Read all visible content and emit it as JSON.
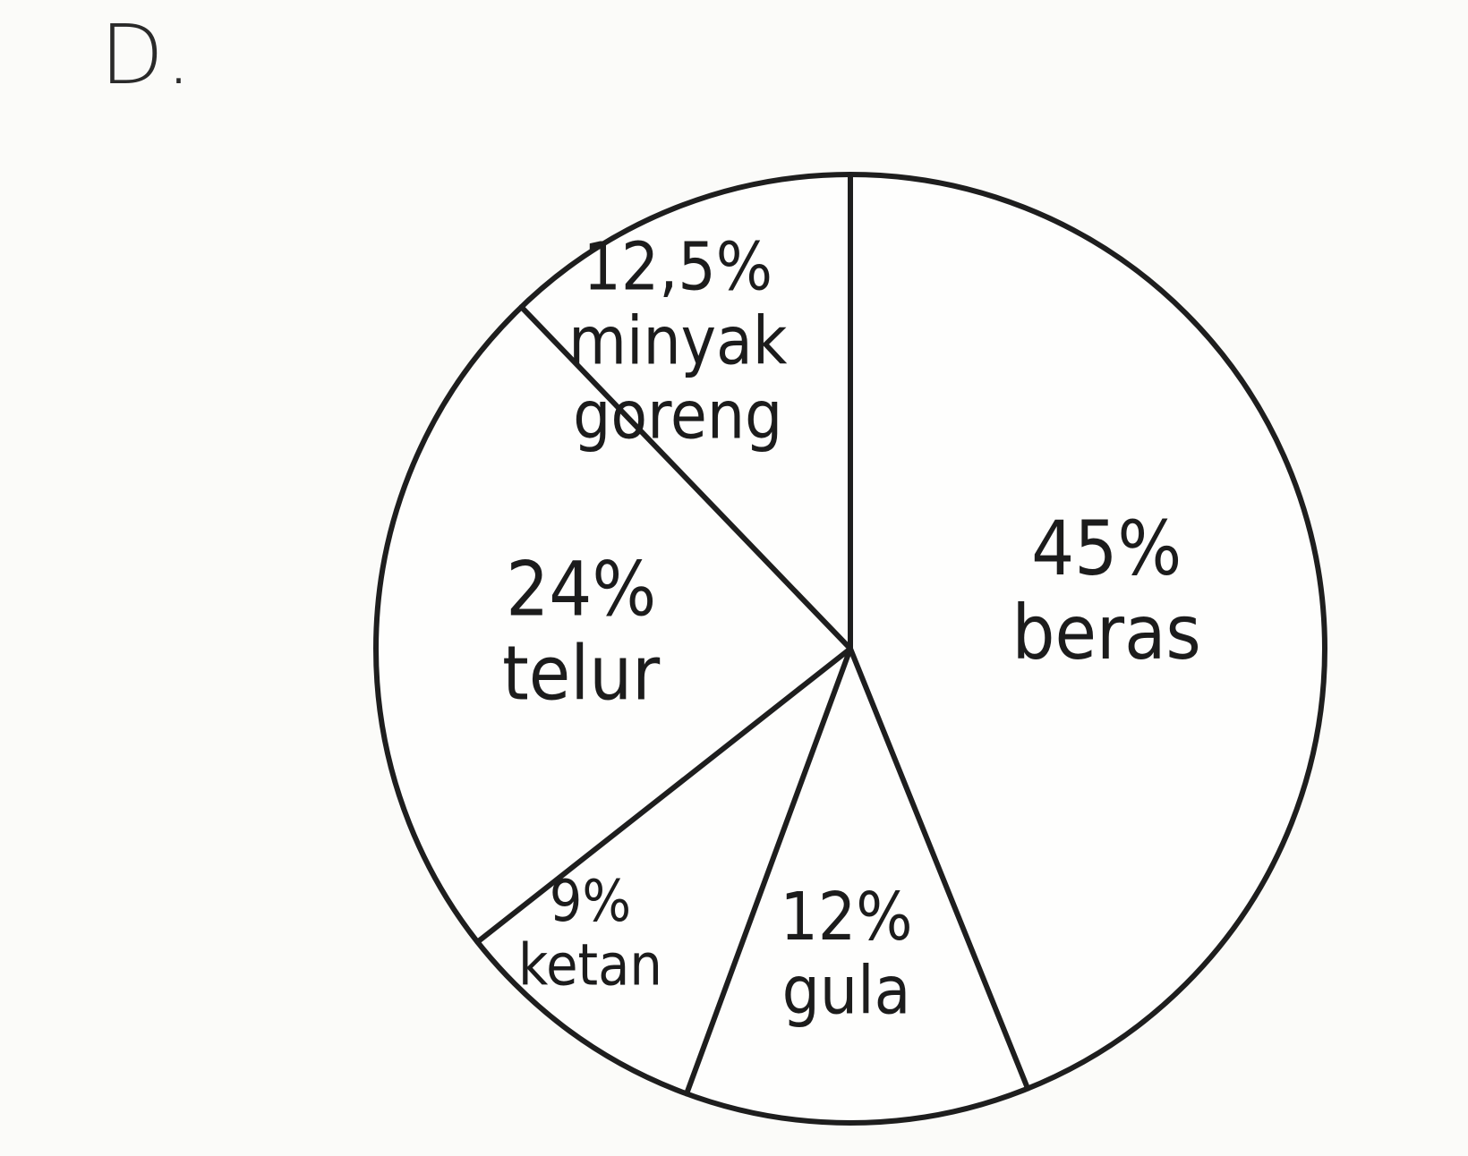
{
  "option_label": "D.",
  "chart_data": {
    "type": "pie",
    "slices": [
      {
        "category": "beras",
        "value_label": "45%",
        "value": 45
      },
      {
        "category": "gula",
        "value_label": "12%",
        "value": 12
      },
      {
        "category": "ketan",
        "value_label": "9%",
        "value": 9
      },
      {
        "category": "telur",
        "value_label": "24%",
        "value": 24
      },
      {
        "category": "minyak\ngoreng",
        "value_label": "12,5%",
        "value": 12.5
      }
    ],
    "start_position": "top",
    "direction": "clockwise",
    "colors": {
      "fill": "#fefefd",
      "stroke": "#1e1e1e",
      "text": "#1c1c1c"
    }
  }
}
